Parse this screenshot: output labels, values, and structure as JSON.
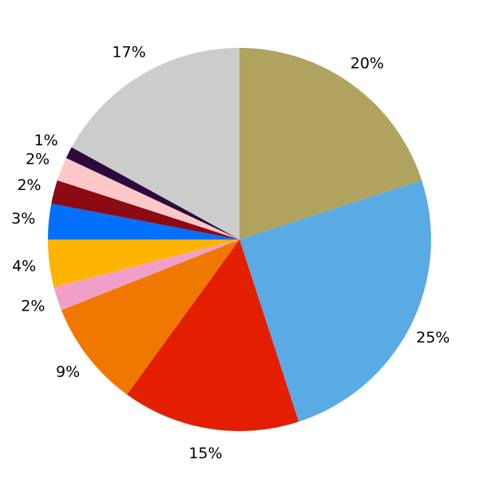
{
  "chart_data": {
    "type": "pie",
    "values": [
      20,
      25,
      15,
      9,
      2,
      4,
      3,
      2,
      2,
      1,
      17
    ],
    "value_labels": [
      "20%",
      "25%",
      "15%",
      "9%",
      "2%",
      "4%",
      "3%",
      "2%",
      "2%",
      "1%",
      "17%"
    ],
    "colors": [
      "#b0a35f",
      "#5aaae4",
      "#e41e00",
      "#f07800",
      "#f0a0c8",
      "#ffb400",
      "#0070ff",
      "#8c0a14",
      "#ffc8c8",
      "#2d0a3c",
      "#cccccc"
    ],
    "start_angle": 90,
    "direction": "clockwise"
  }
}
